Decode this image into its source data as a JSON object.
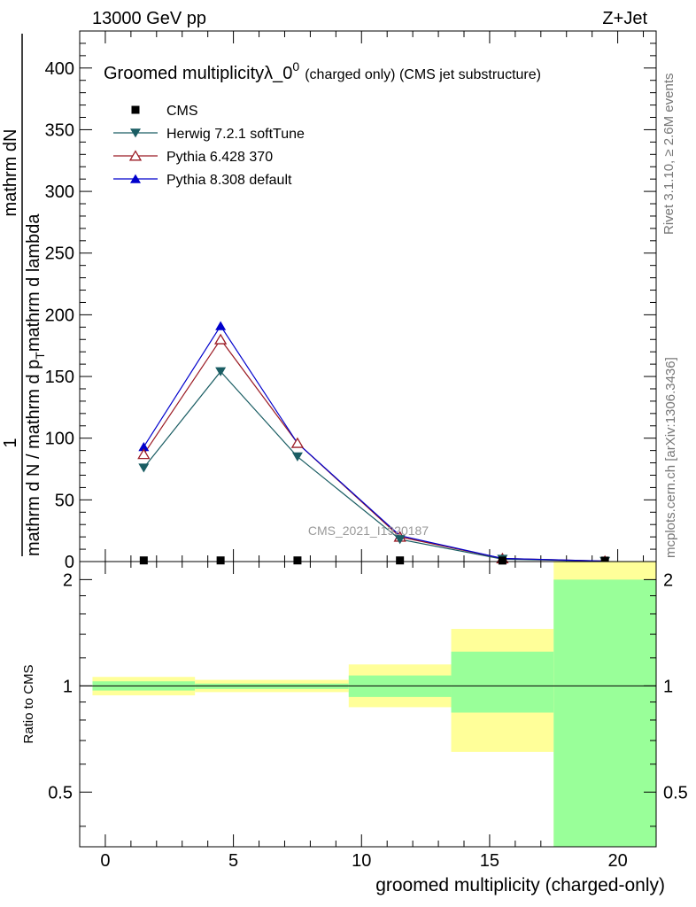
{
  "header": {
    "energy_label": "13000 GeV pp",
    "process_label": "Z+Jet"
  },
  "side_labels": {
    "rivet": "Rivet 3.1.10, ≥ 2.6M events",
    "mcplots": "mcplots.cern.ch [arXiv:1306.3436]"
  },
  "watermark": "CMS_2021_I1920187",
  "chart_data": [
    {
      "type": "line",
      "title": "Groomed multiplicityλ_0⁰ (charged only) (CMS jet substructure)",
      "title_main": "Groomed multiplicityλ_0",
      "title_sup": "0",
      "title_small": "(charged only) (CMS jet substructure)",
      "ylabel_top": "mathrm dN",
      "ylabel_bottom_prefix": "mathrm d N / mathrm d p",
      "ylabel_bottom_suffix": "mathrm d lambda",
      "ylabel_sub": "T",
      "ylabel_prefix": "1",
      "ylim": [
        0,
        430
      ],
      "yticks": [
        0,
        50,
        100,
        150,
        200,
        250,
        300,
        350,
        400
      ],
      "xlim": [
        -1,
        21.5
      ],
      "legend_position": "top-left",
      "series": [
        {
          "name": "CMS",
          "color": "#000000",
          "marker": "square",
          "x": [
            1.5,
            4.5,
            7.5,
            11.5,
            15.5,
            19.5
          ],
          "y": [
            0.2,
            0.2,
            0.2,
            0.2,
            0.1,
            0.05
          ]
        },
        {
          "name": "Herwig 7.2.1 softTune",
          "color": "#1a5d63",
          "marker": "triangle-down",
          "x": [
            1.5,
            4.5,
            7.5,
            11.5,
            15.5,
            19.5
          ],
          "y": [
            76,
            154,
            85,
            18,
            2,
            0.3
          ]
        },
        {
          "name": "Pythia 6.428 370",
          "color": "#9b1b24",
          "marker": "triangle-up-open",
          "x": [
            1.5,
            4.5,
            7.5,
            11.5,
            15.5,
            19.5
          ],
          "y": [
            87,
            180,
            96,
            20,
            2.5,
            0.4
          ]
        },
        {
          "name": "Pythia 8.308 default",
          "color": "#0000cc",
          "marker": "triangle-up",
          "x": [
            1.5,
            4.5,
            7.5,
            11.5,
            15.5,
            19.5
          ],
          "y": [
            93,
            191,
            96,
            21,
            2.5,
            0.4
          ]
        }
      ]
    },
    {
      "type": "area",
      "ylabel": "Ratio to CMS",
      "xlabel": "groomed multiplicity (charged-only)",
      "xlim": [
        -1,
        21.5
      ],
      "ylim": [
        0.35,
        2.25
      ],
      "yticks": [
        0.5,
        1,
        2
      ],
      "ytick_labels": [
        "0.5",
        "1",
        "2"
      ],
      "xticks": [
        0,
        5,
        10,
        15,
        20
      ],
      "xtick_labels": [
        "0",
        "5",
        "10",
        "15",
        "20"
      ],
      "reference_line": 1,
      "bins": [
        {
          "lo": -0.5,
          "hi": 3.5,
          "stat": [
            0.97,
            1.03
          ],
          "total": [
            0.94,
            1.06
          ]
        },
        {
          "lo": 3.5,
          "hi": 9.5,
          "stat": [
            0.98,
            1.015
          ],
          "total": [
            0.96,
            1.04
          ]
        },
        {
          "lo": 9.5,
          "hi": 13.5,
          "stat": [
            0.93,
            1.07
          ],
          "total": [
            0.87,
            1.15
          ]
        },
        {
          "lo": 13.5,
          "hi": 17.5,
          "stat": [
            0.84,
            1.25
          ],
          "total": [
            0.65,
            1.45
          ]
        },
        {
          "lo": 17.5,
          "hi": 21.5,
          "stat": [
            0.35,
            2.0
          ],
          "total": [
            0.35,
            2.25
          ]
        }
      ],
      "colors": {
        "stat": "#99ff99",
        "total": "#ffff99"
      }
    }
  ]
}
